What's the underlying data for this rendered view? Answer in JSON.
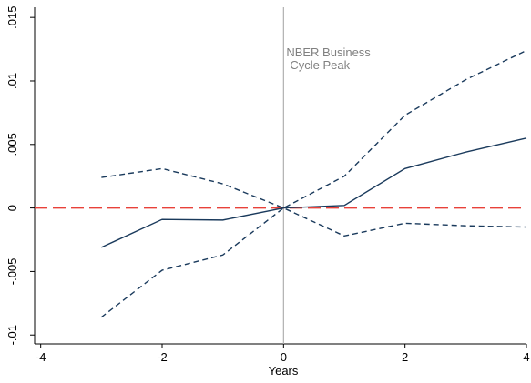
{
  "chart_data": {
    "type": "line",
    "x_label": "Years",
    "annotation": [
      "NBER Business",
      "Cycle Peak"
    ],
    "annotation_x": 0,
    "annotation_y": 0.0115,
    "x": [
      -3,
      -2,
      -1,
      0,
      1,
      2,
      3,
      4
    ],
    "series": [
      {
        "color": "#1a3a5c",
        "dash": "solid",
        "values": [
          -0.0031,
          -0.0009,
          -0.00095,
          0,
          0.0002,
          0.0031,
          0.0044,
          0.0055
        ]
      },
      {
        "color": "#1a3a5c",
        "dash": "dashed",
        "values": [
          0.0024,
          0.0031,
          0.0019,
          0,
          0.0025,
          0.0073,
          0.0101,
          0.0124
        ]
      },
      {
        "color": "#1a3a5c",
        "dash": "dashed",
        "values": [
          -0.0086,
          -0.0049,
          -0.0037,
          0,
          -0.0022,
          -0.0012,
          -0.0014,
          -0.0015
        ]
      }
    ],
    "vline": {
      "x": 0,
      "color": "#b0b0b0"
    },
    "hline": {
      "y": 0,
      "color": "#e8413a"
    },
    "xlim": [
      -4.1,
      4
    ],
    "ylim": [
      -0.0107,
      0.0158
    ],
    "xticks": [
      -4,
      -2,
      0,
      2,
      4
    ],
    "yticks": [
      {
        "value": -0.01,
        "label": "-.01"
      },
      {
        "value": -0.005,
        "label": "-.005"
      },
      0,
      {
        "value": 0.005,
        "label": ".005"
      },
      {
        "value": 0.01,
        "label": ".01"
      },
      {
        "value": 0.015,
        "label": ".015"
      }
    ],
    "grid": false
  }
}
